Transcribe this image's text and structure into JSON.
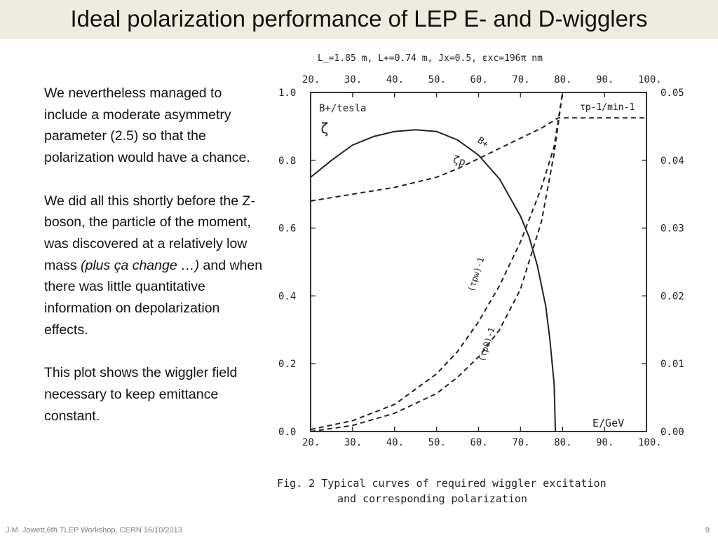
{
  "slide": {
    "title": "Ideal polarization performance of LEP E- and D-wigglers",
    "paragraph1": "We nevertheless managed to include a moderate asymmetry parameter (2.5) so that the  polarization would have a chance.",
    "paragraph2_start": "We did all this shortly before the Z-boson, the particle of the moment, was discovered at a relatively low mass ",
    "paragraph2_italic": "(plus ça change …)",
    "paragraph2_end": " and when there was little quantitative information on depolarization effects.",
    "paragraph3": "This plot shows the wiggler field necessary to keep emittance constant.",
    "footer": "J.M. Jowett,6th TLEP Workshop, CERN 16/10/2013",
    "page_number": "9"
  },
  "chart_data": {
    "type": "line",
    "params_line": "L_=1.85 m, L+=0.74 m, Jx=0.5, εxc=196π nm",
    "left_axis_label": "B+/tesla",
    "zeta_label": "ζ",
    "right_axis_label": "τp-1/min-1",
    "xlabel": "E/GeV",
    "xlim": [
      20,
      100
    ],
    "ylim_left": [
      0,
      1.0
    ],
    "ylim_right": [
      0,
      0.05
    ],
    "x_ticks": [
      "20.",
      "30.",
      "40.",
      "50.",
      "60.",
      "70.",
      "80.",
      "90.",
      "100."
    ],
    "y_left_ticks": [
      "0.0",
      "0.2",
      "0.4",
      "0.6",
      "0.8",
      "1.0"
    ],
    "y_right_ticks": [
      "0.00",
      "0.01",
      "0.02",
      "0.03",
      "0.04",
      "0.05"
    ],
    "curve_labels": {
      "bplus": "B+",
      "zeta": "ζp",
      "tau_w": "(τpw)-1",
      "tau_0": "(τp0)-1"
    },
    "series": [
      {
        "name": "B+",
        "axis": "left",
        "style": "solid",
        "x": [
          20,
          25,
          30,
          35,
          40,
          45,
          50,
          55,
          60,
          65,
          70,
          72,
          74,
          76,
          77,
          78,
          78.3
        ],
        "y": [
          0.75,
          0.8,
          0.845,
          0.87,
          0.885,
          0.89,
          0.885,
          0.86,
          0.815,
          0.745,
          0.635,
          0.575,
          0.49,
          0.37,
          0.27,
          0.14,
          0.0
        ]
      },
      {
        "name": "ζp",
        "axis": "left",
        "style": "dashed",
        "x": [
          20,
          30,
          40,
          50,
          55,
          60,
          65,
          70,
          75,
          79,
          85,
          90,
          95,
          100
        ],
        "y": [
          0.68,
          0.7,
          0.72,
          0.75,
          0.775,
          0.805,
          0.835,
          0.865,
          0.895,
          0.925,
          0.925,
          0.925,
          0.925,
          0.925
        ]
      },
      {
        "name": "(τpw)-1",
        "axis": "right",
        "style": "dashed",
        "x": [
          20,
          30,
          40,
          50,
          55,
          60,
          65,
          70,
          75,
          78,
          80
        ],
        "y": [
          0.0003,
          0.0016,
          0.004,
          0.0085,
          0.0118,
          0.0162,
          0.0215,
          0.028,
          0.036,
          0.042,
          0.05
        ]
      },
      {
        "name": "(τp0)-1",
        "axis": "right",
        "style": "dashed",
        "x": [
          20,
          30,
          40,
          50,
          55,
          60,
          65,
          70,
          75,
          78,
          80
        ],
        "y": [
          0.0,
          0.0009,
          0.0027,
          0.0056,
          0.008,
          0.011,
          0.015,
          0.021,
          0.031,
          0.041,
          0.05
        ]
      }
    ],
    "caption_line1": "Fig. 2  Typical curves of required wiggler excitation",
    "caption_line2": "and corresponding polarization"
  }
}
